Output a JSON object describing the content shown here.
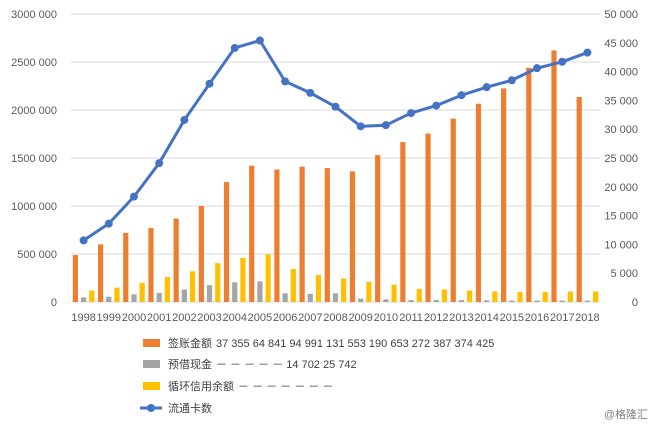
{
  "chart_data": {
    "type": "bar",
    "categories": [
      "1998",
      "1999",
      "2000",
      "2001",
      "2002",
      "2003",
      "2004",
      "2005",
      "2006",
      "2007",
      "2008",
      "2009",
      "2010",
      "2011",
      "2012",
      "2013",
      "2014",
      "2015",
      "2016",
      "2017",
      "2018"
    ],
    "series": [
      {
        "name": "签账金额",
        "type": "bar",
        "axis": "left",
        "color": "#ED7D31",
        "values": [
          490000,
          600000,
          720000,
          770000,
          870000,
          1000000,
          1250000,
          1420000,
          1380000,
          1410000,
          1395000,
          1360000,
          1530000,
          1665000,
          1755000,
          1910000,
          2065000,
          2225000,
          2440000,
          2620000,
          2135000
        ]
      },
      {
        "name": "预借现金",
        "type": "bar",
        "axis": "left",
        "color": "#A5A5A5",
        "values": [
          48000,
          55000,
          80000,
          95000,
          130000,
          175000,
          205000,
          215000,
          90000,
          85000,
          90000,
          35000,
          28000,
          20000,
          20000,
          20000,
          18000,
          15000,
          15000,
          15000,
          15000
        ]
      },
      {
        "name": "循环信用余额",
        "type": "bar",
        "axis": "left",
        "color": "#FFC000",
        "values": [
          120000,
          150000,
          200000,
          260000,
          320000,
          405000,
          460000,
          495000,
          345000,
          280000,
          245000,
          210000,
          180000,
          135000,
          130000,
          120000,
          110000,
          105000,
          105000,
          110000,
          110000
        ]
      },
      {
        "name": "流通卡数",
        "type": "line",
        "axis": "right",
        "color": "#4472C4",
        "values": [
          10700,
          13600,
          18300,
          24100,
          31600,
          37900,
          44100,
          45400,
          38300,
          36300,
          33900,
          30500,
          30700,
          32800,
          34100,
          35900,
          37300,
          38500,
          40600,
          41700,
          43300
        ]
      }
    ],
    "ylim_left": [
      0,
      3000000
    ],
    "yticks_left": [
      "0",
      "500 000",
      "1000 000",
      "1500 000",
      "2000 000",
      "2500 000",
      "3000 000"
    ],
    "ylim_right": [
      0,
      50000
    ],
    "yticks_right": [
      "0",
      "5 000",
      "10 000",
      "15 000",
      "20 000",
      "25 000",
      "30 000",
      "35 000",
      "40 000",
      "45 000",
      "50 000"
    ],
    "legend_position": "bottom-left",
    "legend": [
      {
        "name": "签账金额",
        "extra": "37 355    64 841    94 991    131 553    190 653    272 387    374 425"
      },
      {
        "name": "预借现金",
        "extra": "－ － － － －  14 702   25 742"
      },
      {
        "name": "循环信用余额",
        "extra": "－ － － － － － －"
      },
      {
        "name": "流通卡数",
        "extra": ""
      }
    ],
    "watermark": "@格隆汇"
  }
}
